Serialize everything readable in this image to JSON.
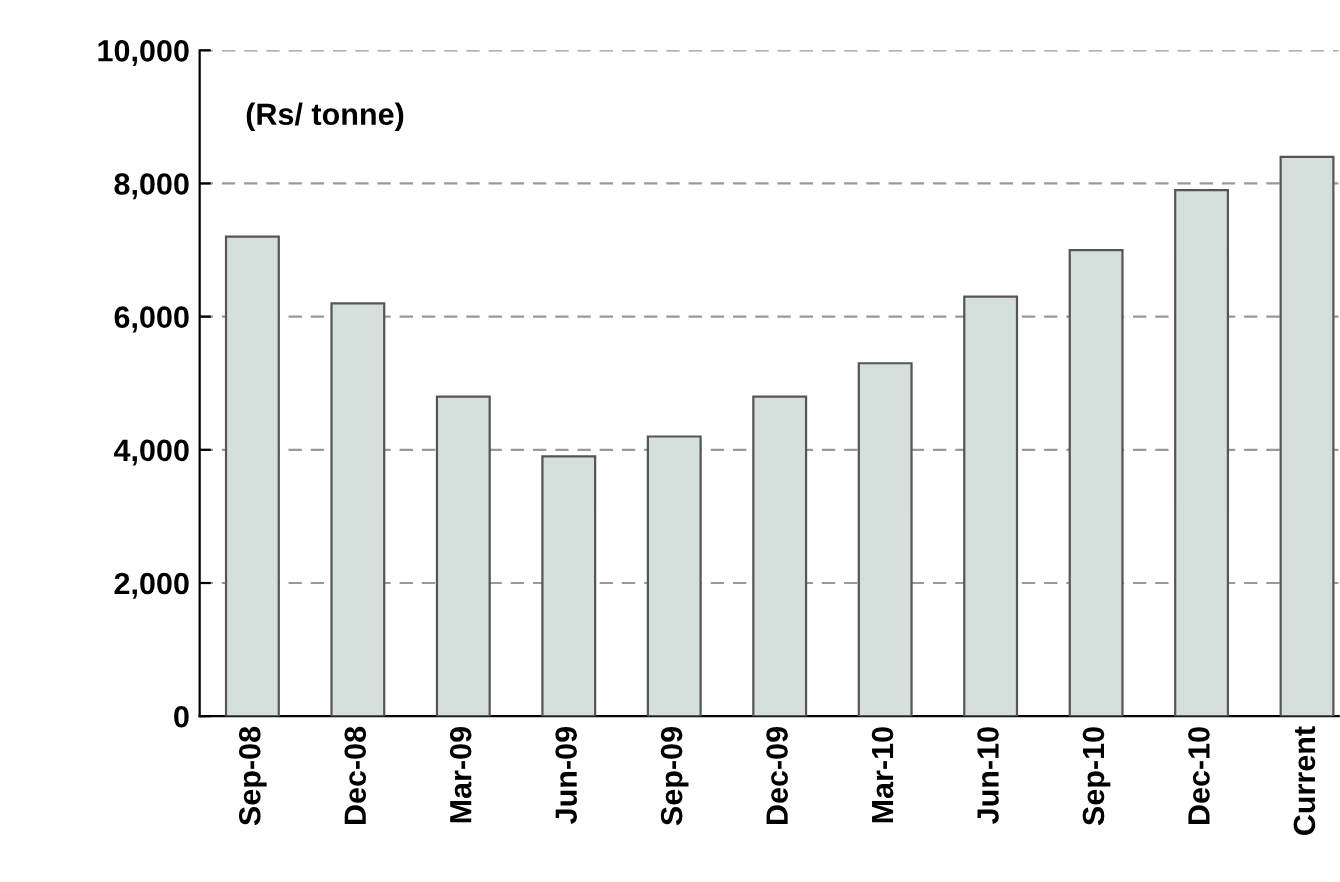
{
  "chart_data": {
    "type": "bar",
    "categories": [
      "Sep-08",
      "Dec-08",
      "Mar-09",
      "Jun-09",
      "Sep-09",
      "Dec-09",
      "Mar-10",
      "Jun-10",
      "Sep-10",
      "Dec-10",
      "Current"
    ],
    "values": [
      7200,
      6200,
      4800,
      3900,
      4200,
      4800,
      5300,
      6300,
      7000,
      7900,
      8400
    ],
    "color": "#d5e0dc",
    "ylim": [
      0,
      10000
    ],
    "yticks": [
      {
        "value": 0,
        "label": "0"
      },
      {
        "value": 2000,
        "label": "2,000"
      },
      {
        "value": 4000,
        "label": "4,000"
      },
      {
        "value": 6000,
        "label": "6,000"
      },
      {
        "value": 8000,
        "label": "8,000"
      },
      {
        "value": 10000,
        "label": "10,000"
      }
    ],
    "grid": "y",
    "annotations": [
      "(Rs/ tonne)"
    ]
  }
}
